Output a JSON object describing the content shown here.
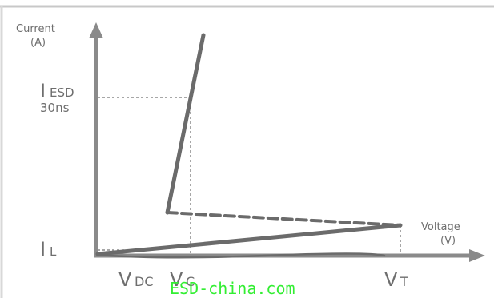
{
  "y_axis": {
    "title": "Current",
    "unit": "(A)"
  },
  "x_axis": {
    "title": "Voltage",
    "unit": "(V)"
  },
  "y_labels": {
    "i_esd_main": "I",
    "i_esd_sub": "ESD",
    "i_esd_time": "30ns",
    "i_l_main": "I",
    "i_l_sub": "L"
  },
  "x_labels": {
    "v_dc_main": "V",
    "v_dc_sub": "DC",
    "v_c_main": "V",
    "v_c_sub": "C",
    "v_t_main": "V",
    "v_t_sub": "T"
  },
  "watermark": "ESD-china.com",
  "colors": {
    "axis": "#8a8a8a",
    "curve": "#6b6b6b",
    "guide": "#8a8a8a",
    "text": "#6e6e6e",
    "watermark": "#33ee33",
    "frame_top": "#c8c8c8",
    "frame_left": "#d8d8d8"
  }
}
